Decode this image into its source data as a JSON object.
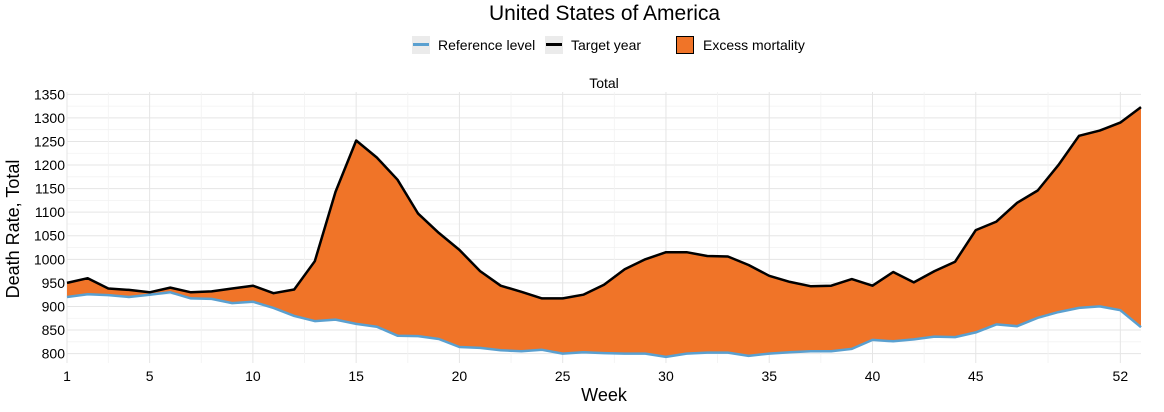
{
  "chart_data": {
    "type": "area",
    "title": "United States of America",
    "facet_label": "Total",
    "xlabel": "Week",
    "ylabel": "Death Rate, Total",
    "xlim": [
      1,
      53
    ],
    "ylim": [
      780,
      1355
    ],
    "x_ticks": [
      1,
      5,
      10,
      15,
      20,
      25,
      30,
      35,
      40,
      45,
      52
    ],
    "y_ticks": [
      800,
      850,
      900,
      950,
      1000,
      1050,
      1100,
      1150,
      1200,
      1250,
      1300,
      1350
    ],
    "legend": {
      "reference": "Reference level",
      "target": "Target year",
      "excess": "Excess mortality",
      "position": "top"
    },
    "colors": {
      "reference": "#5aa0d0",
      "target": "#000000",
      "excess": "#f07428",
      "grid": "#e5e5e5"
    },
    "x": [
      1,
      2,
      3,
      4,
      5,
      6,
      7,
      8,
      9,
      10,
      11,
      12,
      13,
      14,
      15,
      16,
      17,
      18,
      19,
      20,
      21,
      22,
      23,
      24,
      25,
      26,
      27,
      28,
      29,
      30,
      31,
      32,
      33,
      34,
      35,
      36,
      37,
      38,
      39,
      40,
      41,
      42,
      43,
      44,
      45,
      46,
      47,
      48,
      49,
      50,
      51,
      52,
      53
    ],
    "series": [
      {
        "name": "Target year",
        "values": [
          950,
          960,
          938,
          935,
          930,
          940,
          930,
          932,
          938,
          944,
          928,
          936,
          996,
          1143,
          1252,
          1216,
          1169,
          1097,
          1056,
          1020,
          975,
          944,
          931,
          917,
          917,
          925,
          946,
          979,
          1000,
          1015,
          1015,
          1007,
          1006,
          988,
          965,
          952,
          943,
          944,
          958,
          944,
          973,
          951,
          975,
          995,
          1062,
          1080,
          1120,
          1146,
          1200,
          1262,
          1273,
          1290,
          1323
        ]
      },
      {
        "name": "Reference level",
        "values": [
          920,
          926,
          924,
          920,
          925,
          930,
          917,
          916,
          907,
          910,
          897,
          880,
          869,
          872,
          863,
          857,
          838,
          837,
          831,
          814,
          812,
          807,
          805,
          808,
          800,
          803,
          801,
          800,
          800,
          793,
          800,
          802,
          802,
          795,
          800,
          803,
          805,
          805,
          810,
          829,
          826,
          830,
          836,
          835,
          845,
          862,
          858,
          876,
          888,
          897,
          900,
          892,
          856
        ]
      }
    ]
  }
}
